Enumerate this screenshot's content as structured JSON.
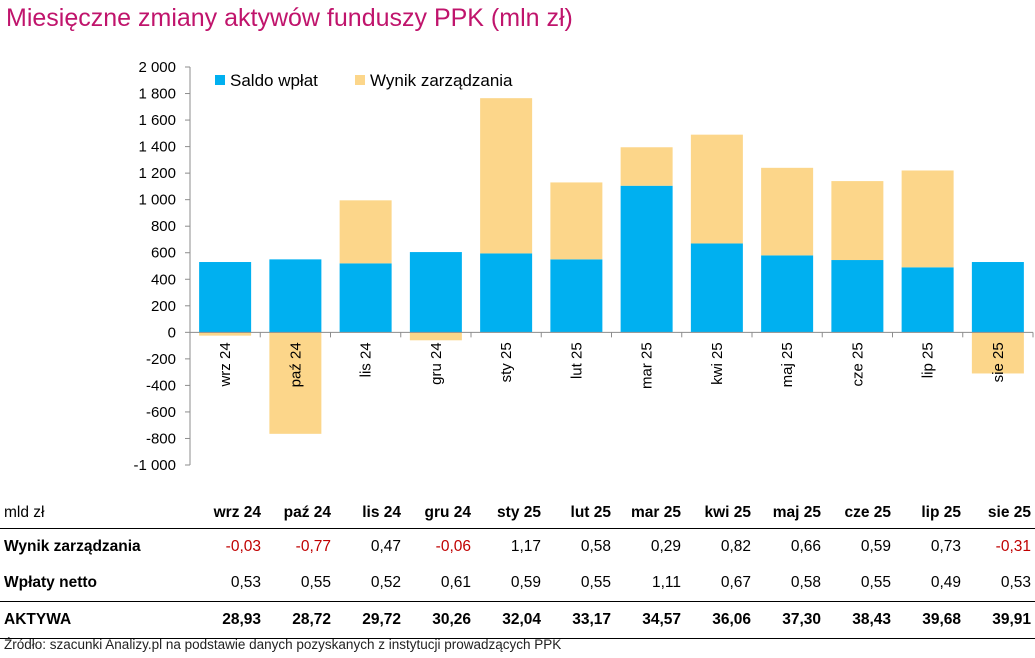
{
  "title": "Miesięczne zmiany aktywów funduszy PPK (mln zł)",
  "source": "Źródło: szacunki Analizy.pl na podstawie danych pozyskanych z instytucji prowadzących PPK",
  "colors": {
    "saldo": "#00b0f0",
    "wynik": "#fcd68a",
    "title": "#c0146c",
    "negative": "#c00000"
  },
  "chart_data": {
    "type": "bar",
    "stacked": true,
    "categories": [
      "wrz 24",
      "paź 24",
      "lis 24",
      "gru 24",
      "sty 25",
      "lut 25",
      "mar 25",
      "kwi 25",
      "maj 25",
      "cze 25",
      "lip 25",
      "sie 25"
    ],
    "series": [
      {
        "name": "Saldo wpłat",
        "color": "#00b0f0",
        "values": [
          530,
          550,
          520,
          605,
          595,
          550,
          1105,
          670,
          580,
          545,
          490,
          530
        ]
      },
      {
        "name": "Wynik zarządzania",
        "color": "#fcd68a",
        "values": [
          -25,
          -765,
          475,
          -60,
          1170,
          580,
          290,
          820,
          660,
          595,
          730,
          -310
        ]
      }
    ],
    "ylim": [
      -1000,
      2000
    ],
    "yticks": [
      "2 000",
      "1 800",
      "1 600",
      "1 400",
      "1 200",
      "1 000",
      "800",
      "600",
      "400",
      "200",
      "0",
      "-200",
      "-400",
      "-600",
      "-800",
      "-1 000"
    ],
    "legend": "top-left",
    "grid": false
  },
  "table": {
    "unit_label": "mld zł",
    "columns": [
      "wrz 24",
      "paź 24",
      "lis 24",
      "gru 24",
      "sty 25",
      "lut 25",
      "mar 25",
      "kwi 25",
      "maj 25",
      "cze 25",
      "lip 25",
      "sie 25"
    ],
    "rows": [
      {
        "label": "Wynik zarządzania",
        "values": [
          "-0,03",
          "-0,77",
          "0,47",
          "-0,06",
          "1,17",
          "0,58",
          "0,29",
          "0,82",
          "0,66",
          "0,59",
          "0,73",
          "-0,31"
        ]
      },
      {
        "label": "Wpłaty netto",
        "values": [
          "0,53",
          "0,55",
          "0,52",
          "0,61",
          "0,59",
          "0,55",
          "1,11",
          "0,67",
          "0,58",
          "0,55",
          "0,49",
          "0,53"
        ]
      },
      {
        "label": "AKTYWA",
        "values": [
          "28,93",
          "28,72",
          "29,72",
          "30,26",
          "32,04",
          "33,17",
          "34,57",
          "36,06",
          "37,30",
          "38,43",
          "39,68",
          "39,91"
        ]
      }
    ]
  }
}
